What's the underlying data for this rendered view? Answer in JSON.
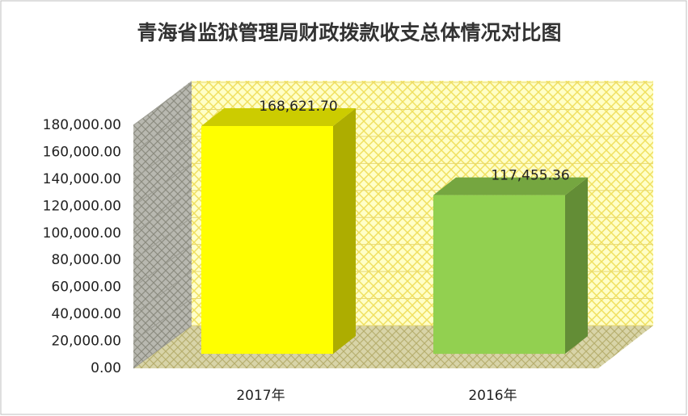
{
  "chart_data": {
    "type": "bar3d",
    "title": "青海省监狱管理局财政拨款收支总体情况对比图",
    "categories": [
      "2017年",
      "2016年"
    ],
    "values": [
      168621.7,
      117455.36
    ],
    "value_labels": [
      "168,621.70",
      "117,455.36"
    ],
    "colors": [
      "#ffff00",
      "#92d050"
    ],
    "ylim": [
      0,
      180000
    ],
    "yticks": [
      {
        "value": 0,
        "label": "0.00"
      },
      {
        "value": 20000,
        "label": "20,000.00"
      },
      {
        "value": 40000,
        "label": "40,000.00"
      },
      {
        "value": 60000,
        "label": "60,000.00"
      },
      {
        "value": 80000,
        "label": "80,000.00"
      },
      {
        "value": 100000,
        "label": "100,000.00"
      },
      {
        "value": 120000,
        "label": "120,000.00"
      },
      {
        "value": 140000,
        "label": "140,000.00"
      },
      {
        "value": 160000,
        "label": "160,000.00"
      },
      {
        "value": 180000,
        "label": "180,000.00"
      }
    ],
    "grid": true
  }
}
